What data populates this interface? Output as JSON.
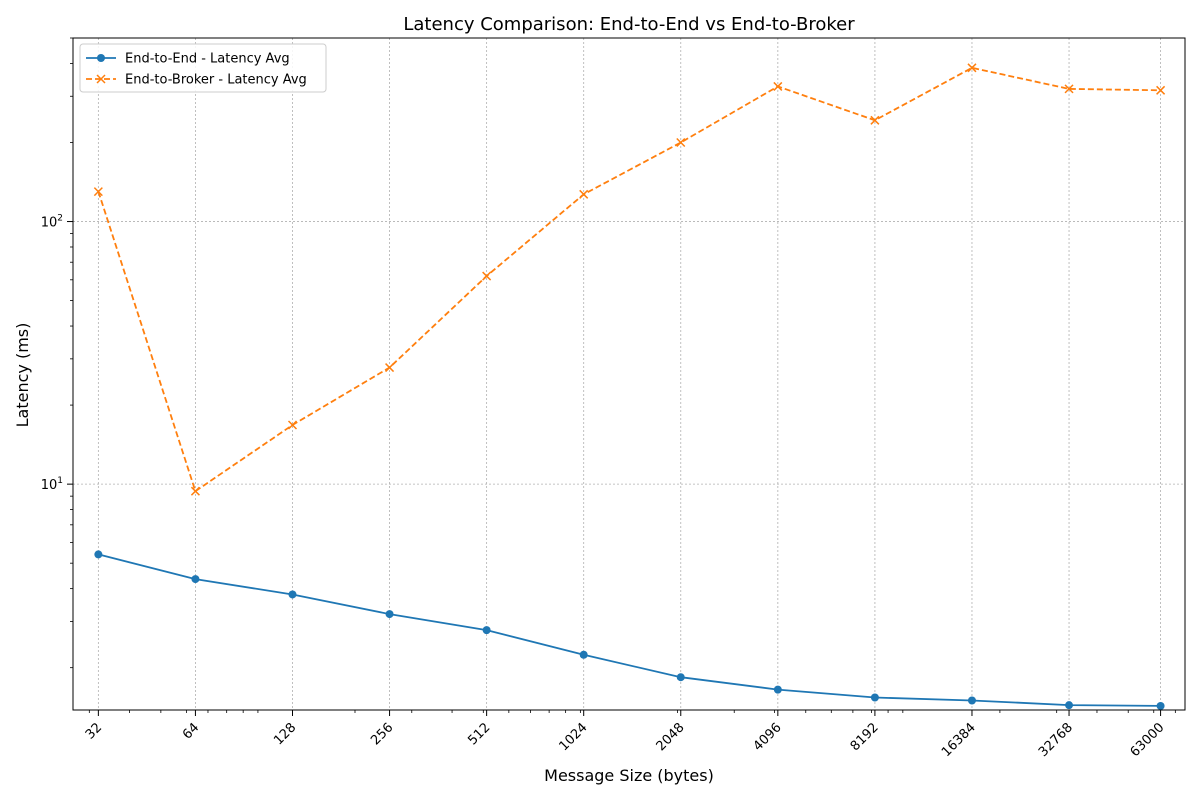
{
  "chart_data": {
    "type": "line",
    "title": "Latency Comparison: End-to-End vs End-to-Broker",
    "xlabel": "Message Size (bytes)",
    "ylabel": "Latency (ms)",
    "x_scale": "log2",
    "y_scale": "log10",
    "xlim": [
      26.7,
      75000
    ],
    "ylim": [
      1.38,
      500
    ],
    "categories": [
      "32",
      "64",
      "128",
      "256",
      "512",
      "1024",
      "2048",
      "4096",
      "8192",
      "16384",
      "32768",
      "63000"
    ],
    "x": [
      32,
      64,
      128,
      256,
      512,
      1024,
      2048,
      4096,
      8192,
      16384,
      32768,
      63000
    ],
    "y_ticks": [
      {
        "value": 10,
        "base": "10",
        "exp": "1"
      },
      {
        "value": 100,
        "base": "10",
        "exp": "2"
      }
    ],
    "grid": true,
    "legend_position": "upper-left",
    "series": [
      {
        "name": "End-to-End - Latency Avg",
        "color": "#1f77b4",
        "line_style": "solid",
        "marker": "circle",
        "values": [
          5.4,
          4.35,
          3.8,
          3.2,
          2.78,
          2.24,
          1.84,
          1.65,
          1.54,
          1.5,
          1.44,
          1.43
        ]
      },
      {
        "name": "End-to-Broker - Latency Avg",
        "color": "#ff7f0e",
        "line_style": "dashed",
        "marker": "x",
        "values": [
          130,
          9.4,
          16.8,
          27.8,
          62,
          127,
          200,
          327,
          243,
          385,
          320,
          316
        ]
      }
    ]
  }
}
